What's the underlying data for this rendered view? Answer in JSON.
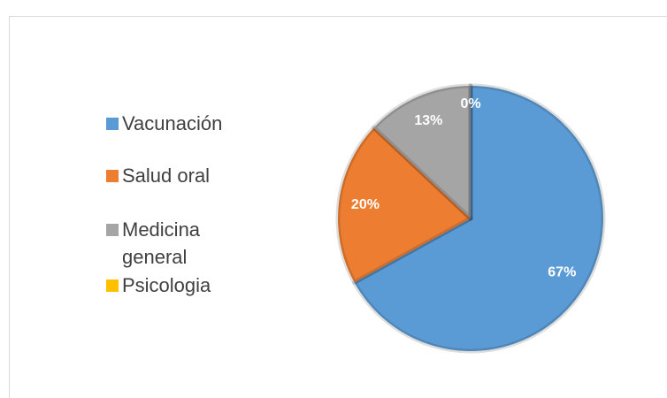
{
  "chart_data": {
    "type": "pie",
    "categories": [
      "Vacunación",
      "Salud oral",
      "Medicina general",
      "Psicologia"
    ],
    "values": [
      67,
      20,
      13,
      0
    ],
    "value_labels": [
      "67%",
      "20%",
      "13%",
      "0%"
    ],
    "colors": [
      "#5b9bd5",
      "#ed7d31",
      "#a5a5a5",
      "#ffc000"
    ],
    "legend": "left"
  }
}
